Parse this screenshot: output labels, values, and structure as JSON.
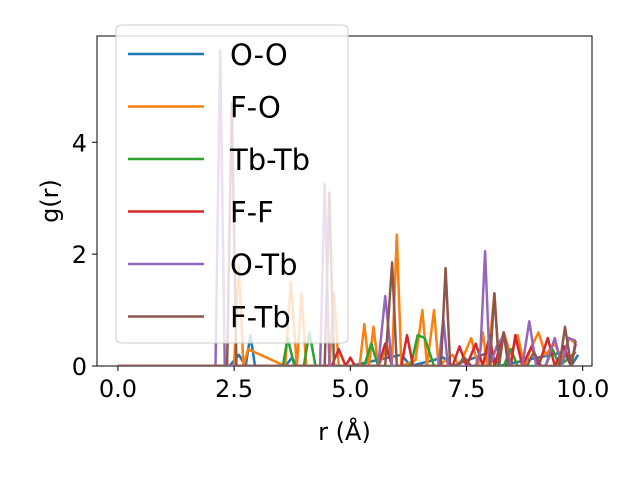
{
  "chart_data": {
    "type": "line",
    "title": "",
    "xlabel": "r (Å)",
    "ylabel": "g(r)",
    "xlim": [
      -0.45,
      10.2
    ],
    "ylim": [
      0,
      5.9
    ],
    "xticks": [
      0.0,
      2.5,
      5.0,
      7.5,
      10.0
    ],
    "xtick_labels": [
      "0.0",
      "2.5",
      "5.0",
      "7.5",
      "10.0"
    ],
    "yticks": [
      0,
      2,
      4
    ],
    "ytick_labels": [
      "0",
      "2",
      "4"
    ],
    "grid": false,
    "legend_position": "upper-left",
    "series": [
      {
        "name": "O-O",
        "color": "#1f77b4",
        "points": [
          [
            0.0,
            0
          ],
          [
            2.4,
            0
          ],
          [
            2.6,
            0.2
          ],
          [
            2.75,
            0.0
          ],
          [
            2.85,
            0.55
          ],
          [
            2.95,
            0
          ],
          [
            3.6,
            0
          ],
          [
            3.75,
            0.15
          ],
          [
            3.85,
            0
          ],
          [
            5.0,
            0
          ],
          [
            6.1,
            0.2
          ],
          [
            6.3,
            0
          ],
          [
            7.0,
            0.15
          ],
          [
            7.2,
            0
          ],
          [
            8.0,
            0.25
          ],
          [
            8.2,
            0
          ],
          [
            9.6,
            0.25
          ],
          [
            9.75,
            0
          ],
          [
            9.9,
            0.2
          ]
        ]
      },
      {
        "name": "F-O",
        "color": "#ff7f0e",
        "points": [
          [
            0.0,
            0
          ],
          [
            2.5,
            0
          ],
          [
            2.6,
            1.8
          ],
          [
            2.7,
            0
          ],
          [
            2.8,
            0.3
          ],
          [
            3.6,
            0
          ],
          [
            3.72,
            1.5
          ],
          [
            3.85,
            0
          ],
          [
            3.95,
            1.3
          ],
          [
            4.05,
            0
          ],
          [
            4.55,
            0
          ],
          [
            4.65,
            1.3
          ],
          [
            4.75,
            0
          ],
          [
            5.2,
            0
          ],
          [
            5.3,
            0.75
          ],
          [
            5.4,
            0
          ],
          [
            5.5,
            0.7
          ],
          [
            5.6,
            0
          ],
          [
            5.8,
            0.35
          ],
          [
            5.9,
            0.1
          ],
          [
            6.0,
            2.35
          ],
          [
            6.1,
            0
          ],
          [
            6.4,
            0.1
          ],
          [
            6.55,
            1.0
          ],
          [
            6.65,
            0
          ],
          [
            6.8,
            1.0
          ],
          [
            6.9,
            0
          ],
          [
            7.2,
            0.2
          ],
          [
            7.35,
            0
          ],
          [
            7.6,
            0.5
          ],
          [
            7.75,
            0
          ],
          [
            7.85,
            0.6
          ],
          [
            7.95,
            0
          ],
          [
            8.1,
            1.3
          ],
          [
            8.2,
            0
          ],
          [
            8.3,
            0.6
          ],
          [
            8.45,
            0.2
          ],
          [
            8.6,
            0.55
          ],
          [
            8.75,
            0
          ],
          [
            8.9,
            0.35
          ],
          [
            9.05,
            0.6
          ],
          [
            9.2,
            0.2
          ],
          [
            9.4,
            0.4
          ],
          [
            9.55,
            0.1
          ],
          [
            9.7,
            0.5
          ],
          [
            9.85,
            0.4
          ]
        ]
      },
      {
        "name": "Tb-Tb",
        "color": "#2ca02c",
        "points": [
          [
            0.0,
            0
          ],
          [
            3.55,
            0
          ],
          [
            3.65,
            0.5
          ],
          [
            3.8,
            0
          ],
          [
            4.0,
            0
          ],
          [
            4.12,
            0.6
          ],
          [
            4.25,
            0
          ],
          [
            5.3,
            0
          ],
          [
            5.45,
            0.4
          ],
          [
            5.6,
            0
          ],
          [
            6.3,
            0
          ],
          [
            6.45,
            0.55
          ],
          [
            6.6,
            0.5
          ],
          [
            6.8,
            0
          ],
          [
            7.3,
            0
          ],
          [
            7.45,
            0.15
          ],
          [
            7.6,
            0
          ],
          [
            8.3,
            0
          ],
          [
            8.45,
            0.3
          ],
          [
            8.6,
            0
          ],
          [
            9.2,
            0
          ],
          [
            9.35,
            0.3
          ],
          [
            9.5,
            0
          ],
          [
            9.85,
            0.25
          ]
        ]
      },
      {
        "name": "F-F",
        "color": "#d62728",
        "points": [
          [
            0.0,
            0
          ],
          [
            4.6,
            0
          ],
          [
            4.75,
            0.3
          ],
          [
            4.9,
            0
          ],
          [
            5.0,
            0.15
          ],
          [
            5.1,
            0
          ],
          [
            5.6,
            0
          ],
          [
            5.75,
            0.4
          ],
          [
            5.9,
            0
          ],
          [
            6.1,
            0
          ],
          [
            6.22,
            0.55
          ],
          [
            6.35,
            0
          ],
          [
            7.2,
            0
          ],
          [
            7.35,
            0.35
          ],
          [
            7.5,
            0
          ],
          [
            7.7,
            0.4
          ],
          [
            7.85,
            0
          ],
          [
            8.0,
            0.55
          ],
          [
            8.1,
            0
          ],
          [
            8.3,
            0.6
          ],
          [
            8.45,
            0
          ],
          [
            8.55,
            0.55
          ],
          [
            8.7,
            0
          ],
          [
            8.9,
            0.35
          ],
          [
            9.05,
            0
          ],
          [
            9.25,
            0.5
          ],
          [
            9.4,
            0
          ],
          [
            9.6,
            0.35
          ],
          [
            9.75,
            0
          ],
          [
            9.85,
            0.4
          ]
        ]
      },
      {
        "name": "O-Tb",
        "color": "#9467bd",
        "points": [
          [
            0.0,
            0
          ],
          [
            2.1,
            0
          ],
          [
            2.2,
            5.65
          ],
          [
            2.3,
            0
          ],
          [
            4.35,
            0
          ],
          [
            4.45,
            3.25
          ],
          [
            4.55,
            0
          ],
          [
            5.6,
            0
          ],
          [
            5.75,
            1.25
          ],
          [
            5.9,
            0
          ],
          [
            6.9,
            0
          ],
          [
            7.0,
            0.85
          ],
          [
            7.1,
            0
          ],
          [
            7.7,
            0
          ],
          [
            7.8,
            0.3
          ],
          [
            7.9,
            2.05
          ],
          [
            8.0,
            0
          ],
          [
            8.15,
            0.35
          ],
          [
            8.3,
            0.55
          ],
          [
            8.45,
            0
          ],
          [
            8.7,
            0
          ],
          [
            8.85,
            0.8
          ],
          [
            9.0,
            0
          ],
          [
            9.2,
            0
          ],
          [
            9.4,
            0.5
          ],
          [
            9.55,
            0
          ],
          [
            9.7,
            0.5
          ],
          [
            9.85,
            0.45
          ]
        ]
      },
      {
        "name": "F-Tb",
        "color": "#8c564b",
        "points": [
          [
            0.0,
            0
          ],
          [
            2.35,
            0
          ],
          [
            2.45,
            4.7
          ],
          [
            2.55,
            0
          ],
          [
            4.45,
            0
          ],
          [
            4.55,
            3.1
          ],
          [
            4.65,
            0
          ],
          [
            5.75,
            0
          ],
          [
            5.9,
            1.85
          ],
          [
            6.0,
            0
          ],
          [
            6.95,
            0
          ],
          [
            7.05,
            1.75
          ],
          [
            7.15,
            0
          ],
          [
            7.3,
            0
          ],
          [
            7.45,
            0.15
          ],
          [
            7.6,
            0
          ],
          [
            8.0,
            0
          ],
          [
            8.1,
            1.3
          ],
          [
            8.2,
            0
          ],
          [
            8.3,
            0.6
          ],
          [
            8.4,
            0
          ],
          [
            8.8,
            0
          ],
          [
            8.95,
            0.25
          ],
          [
            9.1,
            0
          ],
          [
            9.5,
            0
          ],
          [
            9.62,
            0.7
          ],
          [
            9.75,
            0
          ],
          [
            9.85,
            0.45
          ]
        ]
      }
    ]
  }
}
